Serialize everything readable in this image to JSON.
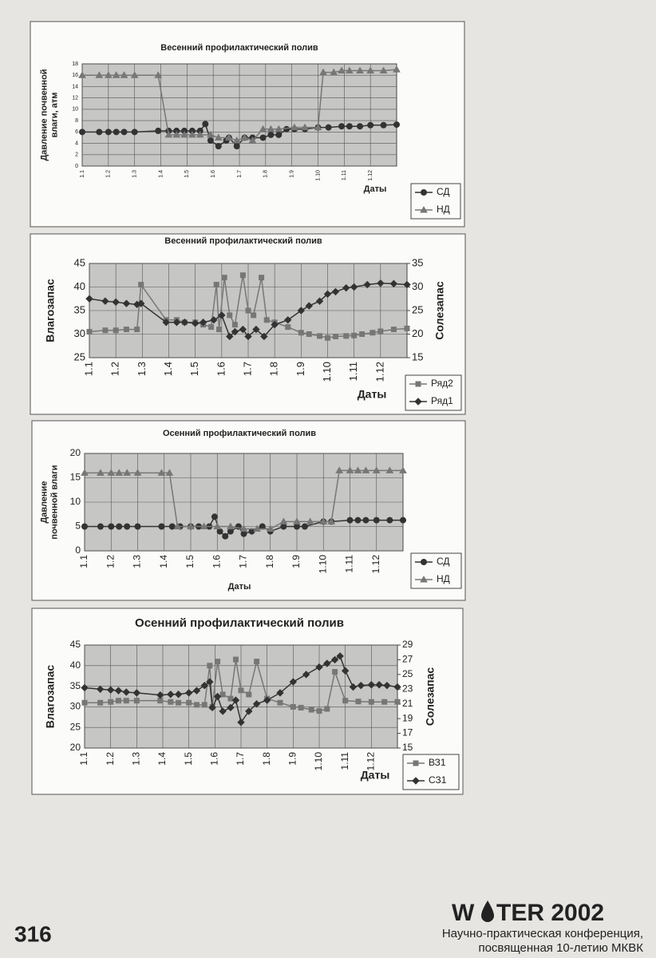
{
  "chart_data": [
    {
      "type": "line",
      "title": "Весенний профилактический полив",
      "ylabel": [
        "Давление почвенной",
        "влаги, атм"
      ],
      "xlabel": "Даты",
      "xlim": [
        1,
        13
      ],
      "xticks": [
        {
          "value": 1,
          "label": "1.1"
        },
        {
          "value": 2,
          "label": "1.2"
        },
        {
          "value": 3,
          "label": "1.3"
        },
        {
          "value": 4,
          "label": "1.4"
        },
        {
          "value": 5,
          "label": "1.5"
        },
        {
          "value": 6,
          "label": "1.6"
        },
        {
          "value": 7,
          "label": "1.7"
        },
        {
          "value": 8,
          "label": "1.8"
        },
        {
          "value": 9,
          "label": "1.9"
        },
        {
          "value": 10,
          "label": "1.10"
        },
        {
          "value": 11,
          "label": "1.11"
        },
        {
          "value": 12,
          "label": "1.12"
        }
      ],
      "ylim": [
        0,
        18
      ],
      "yticks": [
        0,
        2,
        4,
        6,
        8,
        10,
        12,
        14,
        16,
        18
      ],
      "grid": true,
      "series": [
        {
          "name": "СД",
          "color": "#333333",
          "marker": "circle",
          "x": [
            1,
            1.65,
            2,
            2.3,
            2.6,
            3,
            3.9,
            4.3,
            4.6,
            4.9,
            5.2,
            5.5,
            5.7,
            5.9,
            6.2,
            6.5,
            6.6,
            6.9,
            7.2,
            7.5,
            7.9,
            8.2,
            8.5,
            8.8,
            9.1,
            9.5,
            10,
            10.4,
            10.9,
            11.2,
            11.6,
            12,
            12.5,
            13
          ],
          "values": [
            6,
            6,
            6,
            6,
            6,
            6,
            6.2,
            6.2,
            6.2,
            6.2,
            6.2,
            6.2,
            7.4,
            4.5,
            3.5,
            4.5,
            5,
            3.5,
            5,
            5,
            5,
            5.5,
            5.5,
            6.5,
            6.5,
            6.5,
            6.8,
            6.8,
            7,
            7,
            7,
            7.2,
            7.2,
            7.3
          ]
        },
        {
          "name": "НД",
          "color": "#777777",
          "marker": "triangle",
          "x": [
            1,
            1.65,
            2,
            2.3,
            2.6,
            3,
            3.9,
            4.3,
            4.6,
            4.9,
            5.2,
            5.5,
            5.9,
            6.2,
            6.6,
            6.9,
            7.2,
            7.5,
            7.9,
            8.2,
            8.5,
            9.1,
            9.5,
            10,
            10.2,
            10.6,
            10.9,
            11.2,
            11.6,
            12,
            12.5,
            13
          ],
          "values": [
            16,
            16,
            16,
            16,
            16,
            16,
            16,
            5.5,
            5.5,
            5.5,
            5.5,
            5.5,
            5.5,
            5,
            5,
            4.5,
            5,
            4.5,
            6.5,
            6.5,
            6.5,
            6.8,
            6.8,
            6.8,
            16.5,
            16.5,
            16.8,
            16.8,
            16.8,
            16.8,
            16.8,
            17
          ]
        }
      ],
      "legend": "bottom-right"
    },
    {
      "type": "line",
      "title": "Весенний профилактический полив",
      "ylabel": [
        "Влагозапас"
      ],
      "y2label": "Солезапас",
      "xlabel": "Даты",
      "xlim": [
        1,
        13
      ],
      "xticks": [
        {
          "value": 1,
          "label": "1.1"
        },
        {
          "value": 2,
          "label": "1.2"
        },
        {
          "value": 3,
          "label": "1.3"
        },
        {
          "value": 4,
          "label": "1.4"
        },
        {
          "value": 5,
          "label": "1.5"
        },
        {
          "value": 6,
          "label": "1.6"
        },
        {
          "value": 7,
          "label": "1.7"
        },
        {
          "value": 8,
          "label": "1.8"
        },
        {
          "value": 9,
          "label": "1.9"
        },
        {
          "value": 10,
          "label": "1.10"
        },
        {
          "value": 11,
          "label": "1.11"
        },
        {
          "value": 12,
          "label": "1.12"
        }
      ],
      "ylim": [
        25,
        45
      ],
      "yticks": [
        25,
        30,
        35,
        40,
        45
      ],
      "y2lim": [
        15,
        35
      ],
      "y2ticks": [
        15,
        20,
        25,
        30,
        35
      ],
      "grid": true,
      "series": [
        {
          "name": "Ряд2",
          "color": "#777777",
          "marker": "square",
          "x": [
            1,
            1.6,
            2,
            2.4,
            2.8,
            2.95,
            3.9,
            4.3,
            4.6,
            5.0,
            5.3,
            5.6,
            5.8,
            5.9,
            6.1,
            6.3,
            6.5,
            6.8,
            7.0,
            7.2,
            7.5,
            7.7,
            8.0,
            8.5,
            9.0,
            9.3,
            9.7,
            10.0,
            10.3,
            10.7,
            11.0,
            11.3,
            11.7,
            12.0,
            12.5,
            13
          ],
          "values": [
            30.5,
            30.8,
            30.8,
            31,
            31,
            40.5,
            33,
            33,
            32.5,
            32.5,
            32,
            31.5,
            40.5,
            31,
            42,
            34,
            32,
            42.5,
            35,
            34,
            42,
            33,
            32.5,
            31.5,
            30.3,
            30,
            29.6,
            29.2,
            29.5,
            29.6,
            29.7,
            30,
            30.3,
            30.6,
            31,
            31.2
          ]
        },
        {
          "name": "Ряд1",
          "color": "#333333",
          "marker": "diamond",
          "axis": "y2",
          "x": [
            1,
            1.6,
            2,
            2.4,
            2.8,
            2.95,
            3.9,
            4.3,
            4.6,
            5,
            5.3,
            5.7,
            6,
            6.3,
            6.5,
            6.8,
            7,
            7.3,
            7.6,
            8,
            8.5,
            9,
            9.3,
            9.7,
            10,
            10.3,
            10.7,
            11,
            11.5,
            12,
            12.5,
            13
          ],
          "values": [
            27.5,
            27,
            26.8,
            26.5,
            26.3,
            26.5,
            22.5,
            22.5,
            22.5,
            22.3,
            22.5,
            23,
            24,
            19.5,
            20.5,
            21,
            19.5,
            21,
            19.5,
            22,
            23,
            25,
            26,
            27,
            28.5,
            29,
            29.8,
            30,
            30.5,
            30.8,
            30.7,
            30.5
          ]
        }
      ],
      "legend": "bottom-right"
    },
    {
      "type": "line",
      "title": "Осенний профилактический полив",
      "ylabel": [
        "Давление",
        "почвенной влаги"
      ],
      "xlabel": "Даты",
      "xlim": [
        1,
        13
      ],
      "xticks": [
        {
          "value": 1,
          "label": "1.1"
        },
        {
          "value": 2,
          "label": "1.2"
        },
        {
          "value": 3,
          "label": "1.3"
        },
        {
          "value": 4,
          "label": "1.4"
        },
        {
          "value": 5,
          "label": "1.5"
        },
        {
          "value": 6,
          "label": "1.6"
        },
        {
          "value": 7,
          "label": "1.7"
        },
        {
          "value": 8,
          "label": "1.8"
        },
        {
          "value": 9,
          "label": "1.9"
        },
        {
          "value": 10,
          "label": "1.10"
        },
        {
          "value": 11,
          "label": "1.11"
        },
        {
          "value": 12,
          "label": "1.12"
        }
      ],
      "ylim": [
        0,
        20
      ],
      "yticks": [
        0,
        5,
        10,
        15,
        20
      ],
      "grid": true,
      "series": [
        {
          "name": "СД",
          "color": "#333333",
          "marker": "circle",
          "x": [
            1,
            1.6,
            2,
            2.3,
            2.6,
            3,
            3.9,
            4.3,
            4.6,
            5,
            5.3,
            5.7,
            5.9,
            6.1,
            6.3,
            6.5,
            6.8,
            7,
            7.3,
            7.7,
            8,
            8.5,
            9,
            9.3,
            10,
            10.3,
            11,
            11.3,
            11.6,
            12,
            12.5,
            13
          ],
          "values": [
            5,
            5,
            5,
            5,
            5,
            5,
            5,
            5,
            5,
            5,
            5,
            5,
            7,
            4,
            3,
            4,
            5,
            3.5,
            4,
            5,
            4,
            5,
            5,
            5,
            6,
            6,
            6.3,
            6.3,
            6.3,
            6.3,
            6.3,
            6.3
          ]
        },
        {
          "name": "НД",
          "color": "#777777",
          "marker": "triangle",
          "x": [
            1,
            1.6,
            2,
            2.3,
            2.6,
            3,
            3.9,
            4.2,
            4.5,
            5,
            5.5,
            6,
            6.5,
            7,
            7.5,
            8,
            8.5,
            9,
            9.5,
            10,
            10.3,
            10.6,
            11,
            11.3,
            11.6,
            12,
            12.5,
            13
          ],
          "values": [
            16,
            16,
            16,
            16,
            16,
            16,
            16,
            16,
            5,
            5,
            5,
            5,
            5,
            4.5,
            4.5,
            4.5,
            6,
            6,
            6,
            6,
            6,
            16.5,
            16.5,
            16.5,
            16.5,
            16.5,
            16.5,
            16.5
          ]
        }
      ],
      "legend": "bottom-right"
    },
    {
      "type": "line",
      "title": "Осенний профилактический полив",
      "ylabel": [
        "Влагозапас"
      ],
      "y2label": "Солезапас",
      "xlabel": "Даты",
      "xlim": [
        1,
        13
      ],
      "xticks": [
        {
          "value": 1,
          "label": "1.1"
        },
        {
          "value": 2,
          "label": "1.2"
        },
        {
          "value": 3,
          "label": "1.3"
        },
        {
          "value": 4,
          "label": "1.4"
        },
        {
          "value": 5,
          "label": "1.5"
        },
        {
          "value": 6,
          "label": "1.6"
        },
        {
          "value": 7,
          "label": "1.7"
        },
        {
          "value": 8,
          "label": "1.8"
        },
        {
          "value": 9,
          "label": "1.9"
        },
        {
          "value": 10,
          "label": "1.10"
        },
        {
          "value": 11,
          "label": "1.11"
        },
        {
          "value": 12,
          "label": "1.12"
        }
      ],
      "ylim": [
        20,
        45
      ],
      "yticks": [
        20,
        25,
        30,
        35,
        40,
        45
      ],
      "y2lim": [
        15,
        29
      ],
      "y2ticks": [
        15,
        17,
        19,
        21,
        23,
        25,
        27,
        29
      ],
      "grid": true,
      "series": [
        {
          "name": "ВЗ1",
          "color": "#777777",
          "marker": "square",
          "x": [
            1,
            1.6,
            2,
            2.3,
            2.6,
            3,
            3.9,
            4.3,
            4.6,
            5,
            5.3,
            5.6,
            5.8,
            5.9,
            6.1,
            6.3,
            6.6,
            6.8,
            7,
            7.3,
            7.6,
            8,
            8.5,
            9,
            9.3,
            9.7,
            10,
            10.3,
            10.6,
            11,
            11.5,
            12,
            12.5,
            13
          ],
          "values": [
            31,
            31,
            31.2,
            31.5,
            31.5,
            31.5,
            31.5,
            31.2,
            31,
            31,
            30.5,
            30.5,
            40,
            30,
            41,
            33,
            32,
            41.5,
            34,
            33,
            41,
            32,
            31,
            30,
            29.8,
            29.3,
            29,
            29.5,
            38.5,
            31.5,
            31.3,
            31.2,
            31.2,
            31.2
          ]
        },
        {
          "name": "СЗ1",
          "color": "#333333",
          "marker": "diamond",
          "axis": "y2",
          "x": [
            1,
            1.6,
            2,
            2.3,
            2.6,
            3,
            3.9,
            4.3,
            4.6,
            5,
            5.3,
            5.6,
            5.8,
            5.9,
            6.1,
            6.3,
            6.6,
            6.8,
            7,
            7.3,
            7.6,
            8,
            8.5,
            9,
            9.5,
            10,
            10.3,
            10.6,
            10.8,
            11,
            11.3,
            11.6,
            12,
            12.3,
            12.6,
            13
          ],
          "values": [
            23.2,
            23,
            22.9,
            22.8,
            22.6,
            22.5,
            22.2,
            22.3,
            22.3,
            22.5,
            22.8,
            23.5,
            24,
            20.5,
            22,
            20,
            20.5,
            21.5,
            18.5,
            20,
            21,
            21.5,
            22.5,
            24,
            25,
            26,
            26.5,
            27,
            27.5,
            25.5,
            23.3,
            23.5,
            23.6,
            23.6,
            23.5,
            23.3
          ]
        }
      ],
      "legend": "bottom-right"
    }
  ],
  "page_number": "316",
  "logo": {
    "left": "W",
    "right": "TER 2002"
  },
  "footer": [
    "Научно-практическая конференция,",
    "посвященная 10-летию МКВК"
  ]
}
